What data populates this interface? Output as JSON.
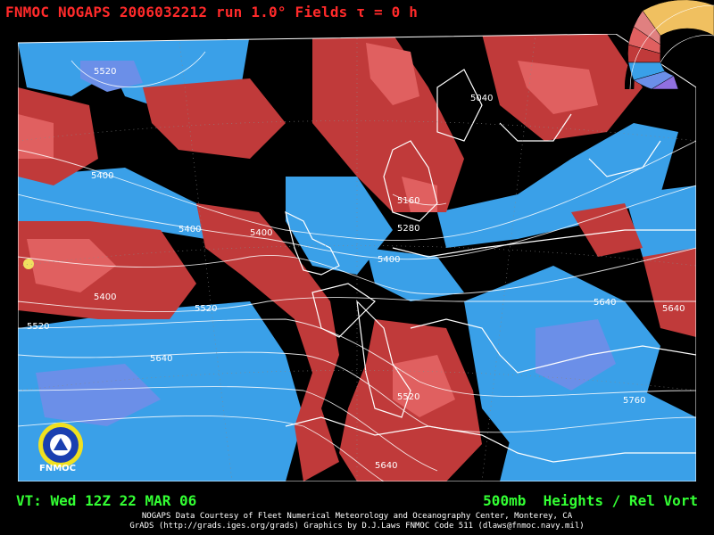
{
  "header": {
    "title": "FNMOC NOGAPS 2006032212 run 1.0° Fields τ = 0 h"
  },
  "footer": {
    "valid_time": "VT: Wed 12Z 22 MAR 06",
    "product": "500mb  Heights / Rel Vort",
    "credit_line1": "NOGAPS Data Courtesy of Fleet Numerical Meteorology and Oceanography Center, Monterey, CA",
    "credit_line2": "GrADS (http://grads.iges.org/grads) Graphics by D.J.Laws FNMOC Code 511 (dlaws@fnmoc.navy.mil)"
  },
  "logo": {
    "label": "FNMOC"
  },
  "contours": [
    {
      "id": "c1",
      "label": "5520"
    },
    {
      "id": "c2",
      "label": "5040"
    },
    {
      "id": "c3",
      "label": "5400"
    },
    {
      "id": "c4",
      "label": "5160"
    },
    {
      "id": "c5",
      "label": "5400"
    },
    {
      "id": "c6",
      "label": "5400"
    },
    {
      "id": "c7",
      "label": "5280"
    },
    {
      "id": "c8",
      "label": "5400"
    },
    {
      "id": "c9",
      "label": "5400"
    },
    {
      "id": "c10",
      "label": "5520"
    },
    {
      "id": "c11",
      "label": "5520"
    },
    {
      "id": "c12",
      "label": "5640"
    },
    {
      "id": "c13",
      "label": "5640"
    },
    {
      "id": "c14",
      "label": "5640"
    },
    {
      "id": "c15",
      "label": "5520"
    },
    {
      "id": "c16",
      "label": "5760"
    },
    {
      "id": "c17",
      "label": "5640"
    }
  ],
  "colors": {
    "title": "#ff2a2a",
    "footer": "#33ff33",
    "positive_vort": "#c03a3a",
    "positive_vort_strong": "#e06060",
    "negative_vort": "#3aa0e8",
    "negative_vort_strong": "#6b8fe8",
    "background": "#000000",
    "contour": "#ffffff"
  }
}
